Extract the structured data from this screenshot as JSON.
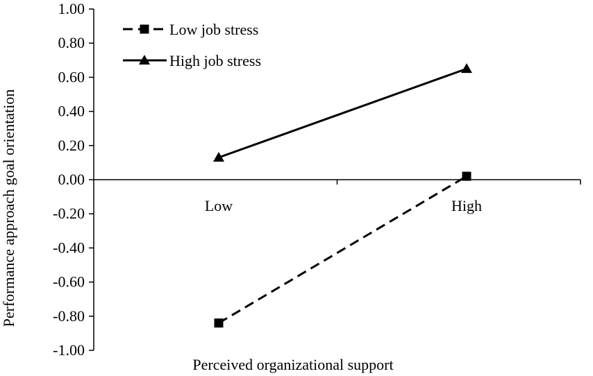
{
  "chart_data": {
    "type": "line",
    "title": "",
    "xlabel": "Perceived organizational support",
    "ylabel": "Performance approach goal orientation",
    "categories": [
      "Low",
      "High"
    ],
    "ylim": [
      -1.0,
      1.0
    ],
    "yticks": [
      "1.00",
      "0.80",
      "0.60",
      "0.40",
      "0.20",
      "0.00",
      "-0.20",
      "-0.40",
      "-0.60",
      "-0.80",
      "-1.00"
    ],
    "grid": false,
    "legend_position": "top-left",
    "series": [
      {
        "name": "Low job stress",
        "values": [
          -0.84,
          0.02
        ],
        "marker": "square",
        "line_style": "dashed",
        "color": "#000000"
      },
      {
        "name": "High job stress",
        "values": [
          0.13,
          0.65
        ],
        "marker": "triangle",
        "line_style": "solid",
        "color": "#000000"
      }
    ]
  }
}
